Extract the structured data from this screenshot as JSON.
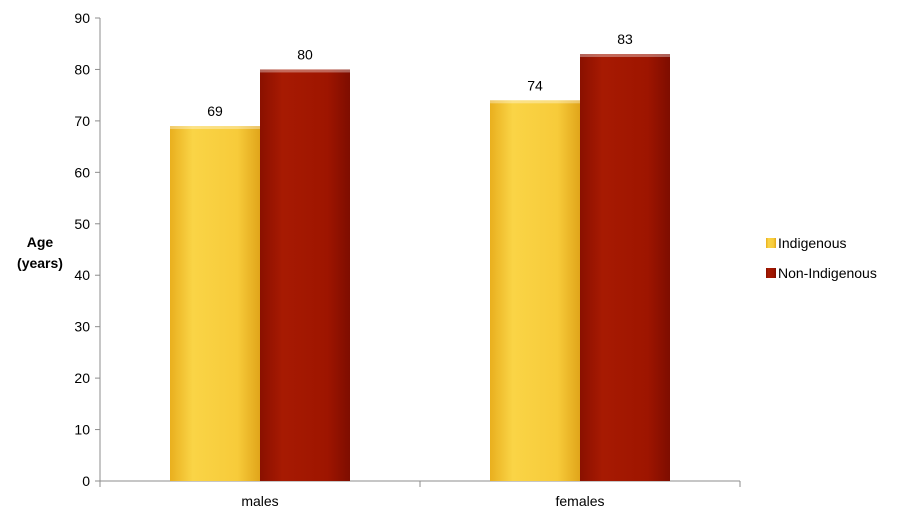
{
  "chart_data": {
    "type": "bar",
    "title": "",
    "xlabel": "",
    "ylabel_lines": [
      "Age",
      "(years)"
    ],
    "categories": [
      "males",
      "females"
    ],
    "series": [
      {
        "name": "Indigenous",
        "values": [
          69,
          74
        ],
        "color": "#F5C431"
      },
      {
        "name": "Non-Indigenous",
        "values": [
          80,
          83
        ],
        "color": "#9E1400"
      }
    ],
    "ylim": [
      0,
      90
    ],
    "yticks": [
      0,
      10,
      20,
      30,
      40,
      50,
      60,
      70,
      80,
      90
    ],
    "grid": false,
    "legend_position": "right"
  }
}
